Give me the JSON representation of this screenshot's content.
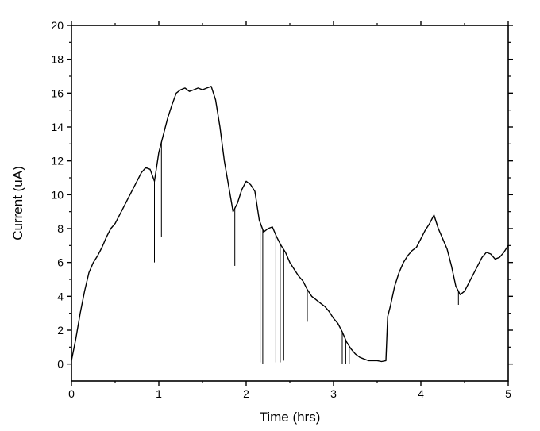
{
  "chart_data": {
    "type": "line",
    "title": "",
    "xlabel": "Time (hrs)",
    "ylabel": "Current (uA)",
    "xlim": [
      0,
      5
    ],
    "ylim": [
      -1,
      20
    ],
    "x_ticks": [
      0,
      1,
      2,
      3,
      4,
      5
    ],
    "y_ticks": [
      0,
      2,
      4,
      6,
      8,
      10,
      12,
      14,
      16,
      18,
      20
    ],
    "grid": false,
    "legend": "none",
    "line_color": "#000000",
    "series": [
      {
        "x": [
          0.0,
          0.05,
          0.1,
          0.15,
          0.2,
          0.25,
          0.3,
          0.35,
          0.4,
          0.45,
          0.5,
          0.55,
          0.6,
          0.65,
          0.7,
          0.75,
          0.8,
          0.85,
          0.9,
          0.95,
          1.0,
          1.05,
          1.1,
          1.15,
          1.2,
          1.25,
          1.3,
          1.35,
          1.4,
          1.45,
          1.5,
          1.55,
          1.6,
          1.65,
          1.7,
          1.75,
          1.8,
          1.85,
          1.9,
          1.95,
          2.0,
          2.05,
          2.1,
          2.15,
          2.2,
          2.25,
          2.3,
          2.35,
          2.4,
          2.45,
          2.5,
          2.55,
          2.6,
          2.65,
          2.7,
          2.75,
          2.8,
          2.85,
          2.9,
          2.95,
          3.0,
          3.05,
          3.1,
          3.15,
          3.2,
          3.25,
          3.3,
          3.35,
          3.4,
          3.45,
          3.5,
          3.55,
          3.6,
          3.62,
          3.65,
          3.7,
          3.75,
          3.8,
          3.85,
          3.9,
          3.95,
          4.0,
          4.05,
          4.1,
          4.15,
          4.2,
          4.25,
          4.3,
          4.35,
          4.4,
          4.45,
          4.5,
          4.55,
          4.6,
          4.65,
          4.7,
          4.75,
          4.8,
          4.85,
          4.9,
          4.95,
          5.0
        ],
        "y": [
          0.2,
          1.5,
          3.0,
          4.3,
          5.4,
          6.0,
          6.4,
          6.9,
          7.5,
          8.0,
          8.3,
          8.8,
          9.3,
          9.8,
          10.3,
          10.8,
          11.3,
          11.6,
          11.5,
          10.8,
          12.5,
          13.5,
          14.5,
          15.3,
          16.0,
          16.2,
          16.3,
          16.1,
          16.2,
          16.3,
          16.2,
          16.3,
          16.4,
          15.6,
          14.0,
          12.0,
          10.5,
          9.0,
          9.5,
          10.3,
          10.8,
          10.6,
          10.2,
          8.5,
          7.8,
          8.0,
          8.1,
          7.5,
          7.0,
          6.6,
          6.0,
          5.6,
          5.2,
          4.9,
          4.4,
          4.0,
          3.8,
          3.6,
          3.4,
          3.1,
          2.7,
          2.4,
          1.9,
          1.3,
          0.9,
          0.6,
          0.4,
          0.3,
          0.2,
          0.2,
          0.2,
          0.15,
          0.2,
          2.8,
          3.4,
          4.6,
          5.4,
          6.0,
          6.4,
          6.7,
          6.9,
          7.4,
          7.9,
          8.3,
          8.8,
          8.0,
          7.4,
          6.8,
          5.8,
          4.6,
          4.1,
          4.3,
          4.8,
          5.3,
          5.8,
          6.3,
          6.6,
          6.5,
          6.2,
          6.3,
          6.6,
          7.0
        ]
      }
    ],
    "spikes": [
      {
        "x": 0.95,
        "y": 6.0
      },
      {
        "x": 1.03,
        "y": 7.5
      },
      {
        "x": 1.85,
        "y": -0.3
      },
      {
        "x": 1.87,
        "y": 5.8
      },
      {
        "x": 2.16,
        "y": 0.1
      },
      {
        "x": 2.19,
        "y": 0.0
      },
      {
        "x": 2.34,
        "y": 0.1
      },
      {
        "x": 2.39,
        "y": 0.1
      },
      {
        "x": 2.43,
        "y": 0.2
      },
      {
        "x": 2.7,
        "y": 2.5
      },
      {
        "x": 3.1,
        "y": 0.0
      },
      {
        "x": 3.14,
        "y": 0.0
      },
      {
        "x": 3.18,
        "y": 0.0
      },
      {
        "x": 4.43,
        "y": 3.5
      }
    ]
  }
}
